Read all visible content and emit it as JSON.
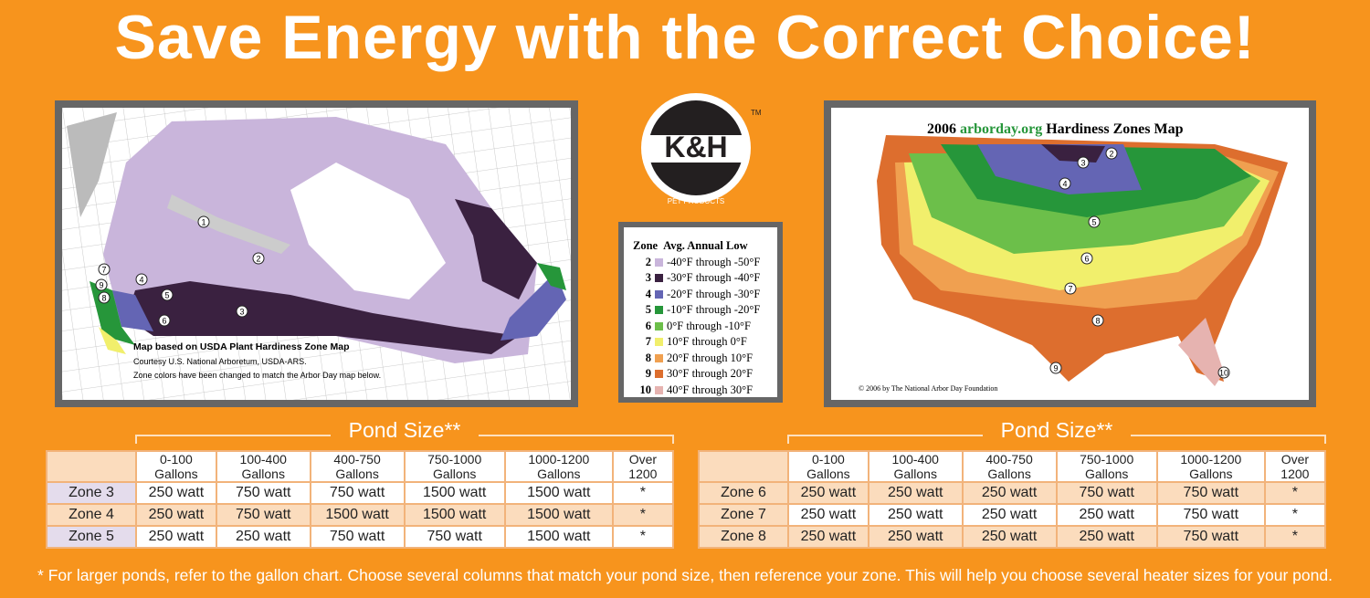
{
  "title": "Save Energy with the Correct Choice!",
  "left_map": {
    "caption_title": "Map based on USDA Plant Hardiness Zone Map",
    "caption_lines": [
      "Courtesy U.S. National Arboretum, USDA-ARS.",
      "Zone colors have been changed to match the Arbor Day map below."
    ],
    "zone_labels": [
      "1",
      "2",
      "3",
      "4",
      "5",
      "6",
      "7",
      "8",
      "9"
    ]
  },
  "logo": {
    "brand": "K&H",
    "trademark": "TM",
    "tagline": "PET PRODUCTS"
  },
  "legend": {
    "header_zone": "Zone",
    "header_low": "Avg. Annual Low",
    "rows": [
      {
        "zone": "2",
        "range": "-40°F through -50°F",
        "color": "#c9b5db"
      },
      {
        "zone": "3",
        "range": "-30°F through -40°F",
        "color": "#3a2140"
      },
      {
        "zone": "4",
        "range": "-20°F through -30°F",
        "color": "#6465b4"
      },
      {
        "zone": "5",
        "range": "-10°F through -20°F",
        "color": "#26963a"
      },
      {
        "zone": "6",
        "range": "0°F through -10°F",
        "color": "#6cbf4a"
      },
      {
        "zone": "7",
        "range": "10°F through 0°F",
        "color": "#f1ef6c"
      },
      {
        "zone": "8",
        "range": "20°F through 10°F",
        "color": "#f0a050"
      },
      {
        "zone": "9",
        "range": "30°F through 20°F",
        "color": "#dd6e2e"
      },
      {
        "zone": "10",
        "range": "40°F through 30°F",
        "color": "#e6b3b0"
      }
    ]
  },
  "right_map": {
    "title_prefix": "2006",
    "title_site": "arborday.org",
    "title_suffix": "Hardiness Zones Map",
    "copyright": "© 2006 by The National Arbor Day Foundation",
    "zone_labels": [
      "2",
      "3",
      "4",
      "5",
      "6",
      "7",
      "8",
      "9",
      "10"
    ]
  },
  "tables": [
    {
      "heading": "Pond Size**",
      "columns": [
        "0-100 Gallons",
        "100-400 Gallons",
        "400-750 Gallons",
        "750-1000 Gallons",
        "1000-1200 Gallons",
        "Over 1200"
      ],
      "rows": [
        [
          "Zone 3",
          "250 watt",
          "750 watt",
          "750 watt",
          "1500 watt",
          "1500 watt",
          "*"
        ],
        [
          "Zone 4",
          "250 watt",
          "750 watt",
          "1500 watt",
          "1500 watt",
          "1500 watt",
          "*"
        ],
        [
          "Zone 5",
          "250 watt",
          "250 watt",
          "750 watt",
          "750 watt",
          "1500 watt",
          "*"
        ]
      ]
    },
    {
      "heading": "Pond Size**",
      "columns": [
        "0-100 Gallons",
        "100-400 Gallons",
        "400-750 Gallons",
        "750-1000 Gallons",
        "1000-1200 Gallons",
        "Over 1200"
      ],
      "rows": [
        [
          "Zone 6",
          "250 watt",
          "250 watt",
          "250 watt",
          "750 watt",
          "750 watt",
          "*"
        ],
        [
          "Zone 7",
          "250 watt",
          "250 watt",
          "250 watt",
          "250 watt",
          "750 watt",
          "*"
        ],
        [
          "Zone 8",
          "250 watt",
          "250 watt",
          "250 watt",
          "250 watt",
          "750 watt",
          "*"
        ]
      ]
    }
  ],
  "footnote": "* For larger ponds, refer to the gallon chart. Choose several columns that match your pond size, then reference your zone. This will help you choose several heater sizes for your pond."
}
